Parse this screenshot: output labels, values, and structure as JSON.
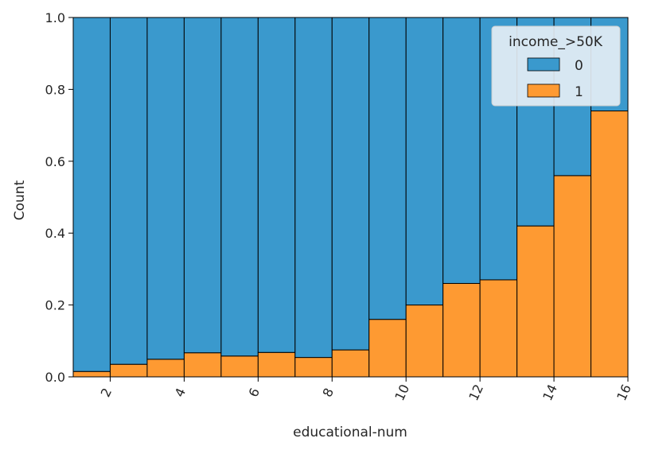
{
  "chart_data": {
    "type": "bar",
    "stacked": true,
    "normalized": true,
    "xlabel": "educational-num",
    "ylabel": "Count",
    "xlim": [
      1,
      16
    ],
    "ylim": [
      0,
      1
    ],
    "x_bin_edges": [
      1,
      2,
      3,
      4,
      5,
      6,
      7,
      8,
      9,
      10,
      11,
      12,
      13,
      14,
      15,
      16
    ],
    "x_ticks": [
      2,
      4,
      6,
      8,
      10,
      12,
      14,
      16
    ],
    "y_ticks": [
      "0.0",
      "0.2",
      "0.4",
      "0.6",
      "0.8",
      "1.0"
    ],
    "grid": false,
    "legend": {
      "title": "income_>50K",
      "placement": "top-right",
      "entries": [
        "0",
        "1"
      ]
    },
    "series": [
      {
        "name": "0",
        "color": "#3a99cd",
        "values": [
          0.985,
          0.965,
          0.951,
          0.933,
          0.942,
          0.932,
          0.946,
          0.925,
          0.84,
          0.8,
          0.74,
          0.73,
          0.58,
          0.44,
          0.26
        ]
      },
      {
        "name": "1",
        "color": "#fe9a32",
        "values": [
          0.015,
          0.035,
          0.049,
          0.067,
          0.058,
          0.068,
          0.054,
          0.075,
          0.16,
          0.2,
          0.26,
          0.27,
          0.42,
          0.56,
          0.74
        ]
      }
    ]
  }
}
